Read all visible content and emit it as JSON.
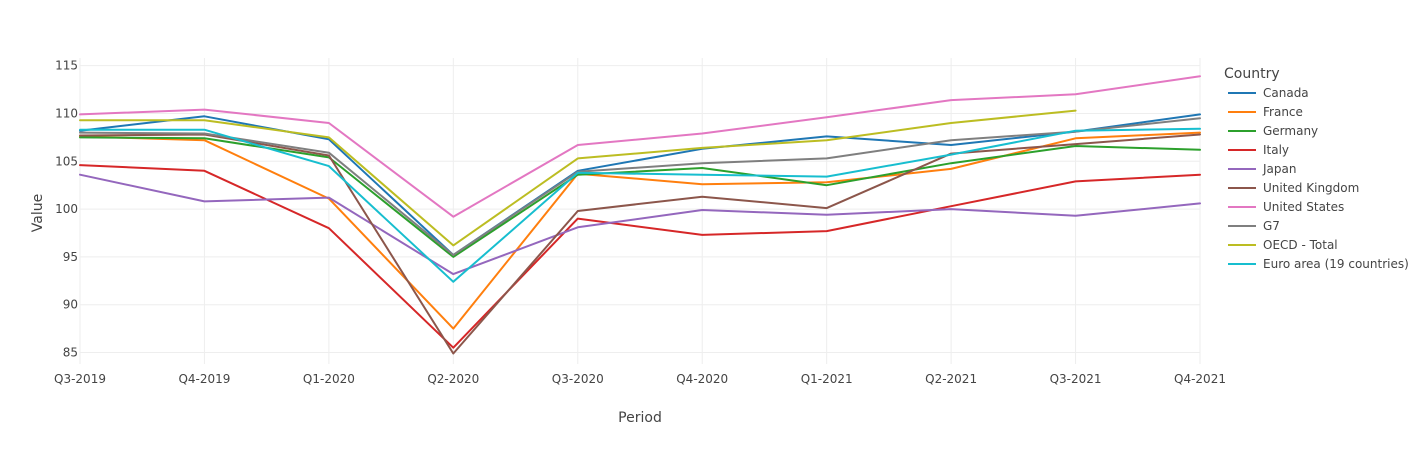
{
  "chart_data": {
    "type": "line",
    "title": "",
    "xlabel": "Period",
    "ylabel": "Value",
    "categories": [
      "Q3-2019",
      "Q4-2019",
      "Q1-2020",
      "Q2-2020",
      "Q3-2020",
      "Q4-2020",
      "Q1-2021",
      "Q2-2021",
      "Q3-2021",
      "Q4-2021"
    ],
    "yticks": [
      85,
      90,
      95,
      100,
      105,
      110,
      115
    ],
    "ylim": [
      83.8,
      115.8
    ],
    "grid": true,
    "legend": {
      "title": "Country",
      "placement": "right"
    },
    "series": [
      {
        "name": "Canada",
        "color": "#1f77b4",
        "values": [
          108.2,
          109.7,
          107.3,
          95.2,
          104.0,
          106.3,
          107.6,
          106.7,
          108.1,
          109.9
        ]
      },
      {
        "name": "France",
        "color": "#ff7f0e",
        "values": [
          107.6,
          107.2,
          101.1,
          87.5,
          103.7,
          102.6,
          102.8,
          104.2,
          107.4,
          108.0
        ]
      },
      {
        "name": "Germany",
        "color": "#2ca02c",
        "values": [
          107.5,
          107.4,
          105.4,
          95.0,
          103.6,
          104.3,
          102.5,
          104.8,
          106.6,
          106.2
        ]
      },
      {
        "name": "Italy",
        "color": "#d62728",
        "values": [
          104.6,
          104.0,
          98.0,
          85.5,
          99.0,
          97.3,
          97.7,
          100.3,
          102.9,
          103.6
        ]
      },
      {
        "name": "Japan",
        "color": "#9467bd",
        "values": [
          103.6,
          100.8,
          101.2,
          93.2,
          98.1,
          99.9,
          99.4,
          100.0,
          99.3,
          100.6
        ]
      },
      {
        "name": "United Kingdom",
        "color": "#8c564b",
        "values": [
          107.7,
          107.8,
          105.6,
          84.9,
          99.8,
          101.3,
          100.1,
          105.8,
          106.8,
          107.8
        ]
      },
      {
        "name": "United States",
        "color": "#e377c2",
        "values": [
          109.9,
          110.4,
          109.0,
          99.2,
          106.7,
          107.9,
          109.6,
          111.4,
          112.0,
          113.9
        ]
      },
      {
        "name": "G7",
        "color": "#7f7f7f",
        "values": [
          108.0,
          107.9,
          105.9,
          95.2,
          103.9,
          104.8,
          105.3,
          107.2,
          108.1,
          109.5
        ]
      },
      {
        "name": "OECD - Total",
        "color": "#bcbd22",
        "values": [
          109.3,
          109.3,
          107.5,
          96.2,
          105.3,
          106.4,
          107.2,
          109.0,
          110.3,
          null
        ]
      },
      {
        "name": "Euro area (19 countries)",
        "color": "#17becf",
        "values": [
          108.3,
          108.3,
          104.5,
          92.4,
          103.8,
          103.6,
          103.4,
          105.7,
          108.2,
          108.4
        ]
      }
    ]
  }
}
